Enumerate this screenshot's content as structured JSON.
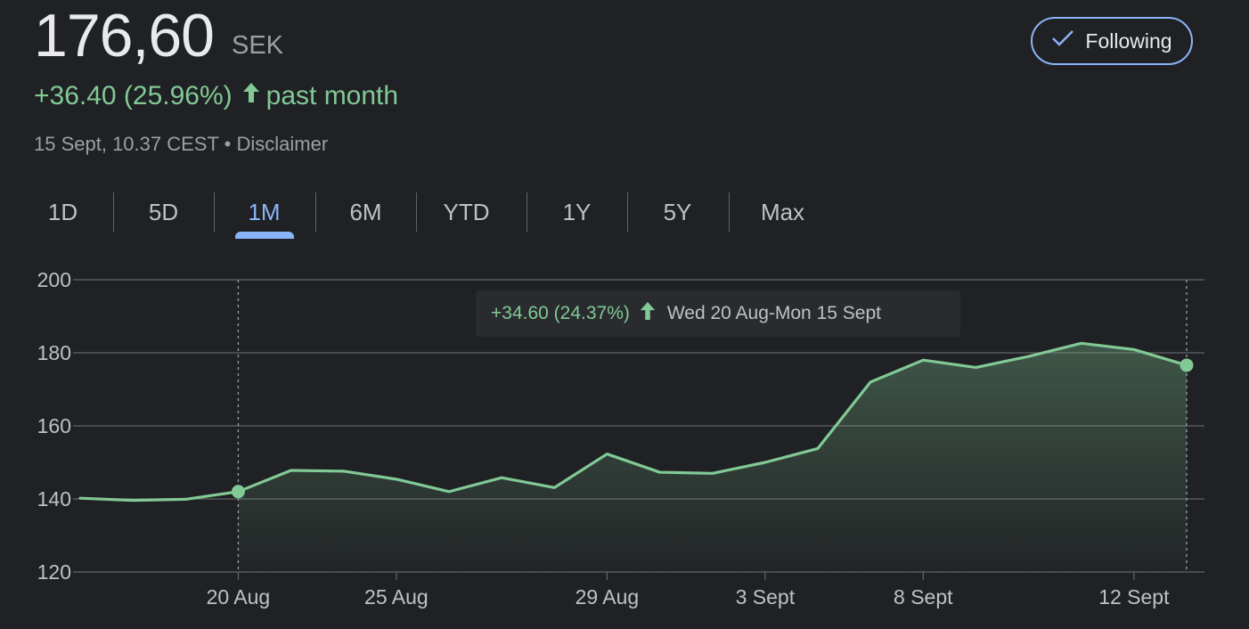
{
  "header": {
    "price": "176,60",
    "currency": "SEK",
    "change_text": "+36.40 (25.96%)",
    "period_label": "past month",
    "timestamp": "15 Sept, 10.37 CEST",
    "separator": "•",
    "disclaimer": "Disclaimer"
  },
  "follow_button": {
    "label": "Following",
    "icon": "check-icon"
  },
  "tabs": [
    {
      "label": "1D",
      "active": false
    },
    {
      "label": "5D",
      "active": false
    },
    {
      "label": "1M",
      "active": true
    },
    {
      "label": "6M",
      "active": false
    },
    {
      "label": "YTD",
      "active": false
    },
    {
      "label": "1Y",
      "active": false
    },
    {
      "label": "5Y",
      "active": false
    },
    {
      "label": "Max",
      "active": false
    }
  ],
  "tooltip": {
    "change": "+34.60 (24.37%)",
    "range": "Wed 20 Aug-Mon 15 Sept"
  },
  "colors": {
    "background": "#202124",
    "line": "#81c995",
    "accent": "#8ab4f8",
    "grid": "#5f6368",
    "text_secondary": "#9aa0a6"
  },
  "chart_data": {
    "type": "area",
    "currency": "SEK",
    "ylim": [
      120,
      200
    ],
    "y_ticks": [
      200,
      180,
      160,
      140,
      120
    ],
    "x_tick_labels": [
      "20 Aug",
      "25 Aug",
      "29 Aug",
      "3 Sept",
      "8 Sept",
      "12 Sept"
    ],
    "x_tick_index": [
      3,
      6,
      10,
      13,
      16,
      20
    ],
    "values": [
      140.2,
      139.6,
      139.9,
      142.0,
      147.8,
      147.6,
      145.4,
      142.0,
      145.8,
      143.1,
      152.3,
      147.3,
      147.0,
      150.0,
      153.8,
      172.0,
      178.0,
      176.0,
      179.0,
      182.6,
      180.9,
      176.6
    ],
    "selection": {
      "start_index": 3,
      "end_index": 21
    },
    "grid": true
  }
}
